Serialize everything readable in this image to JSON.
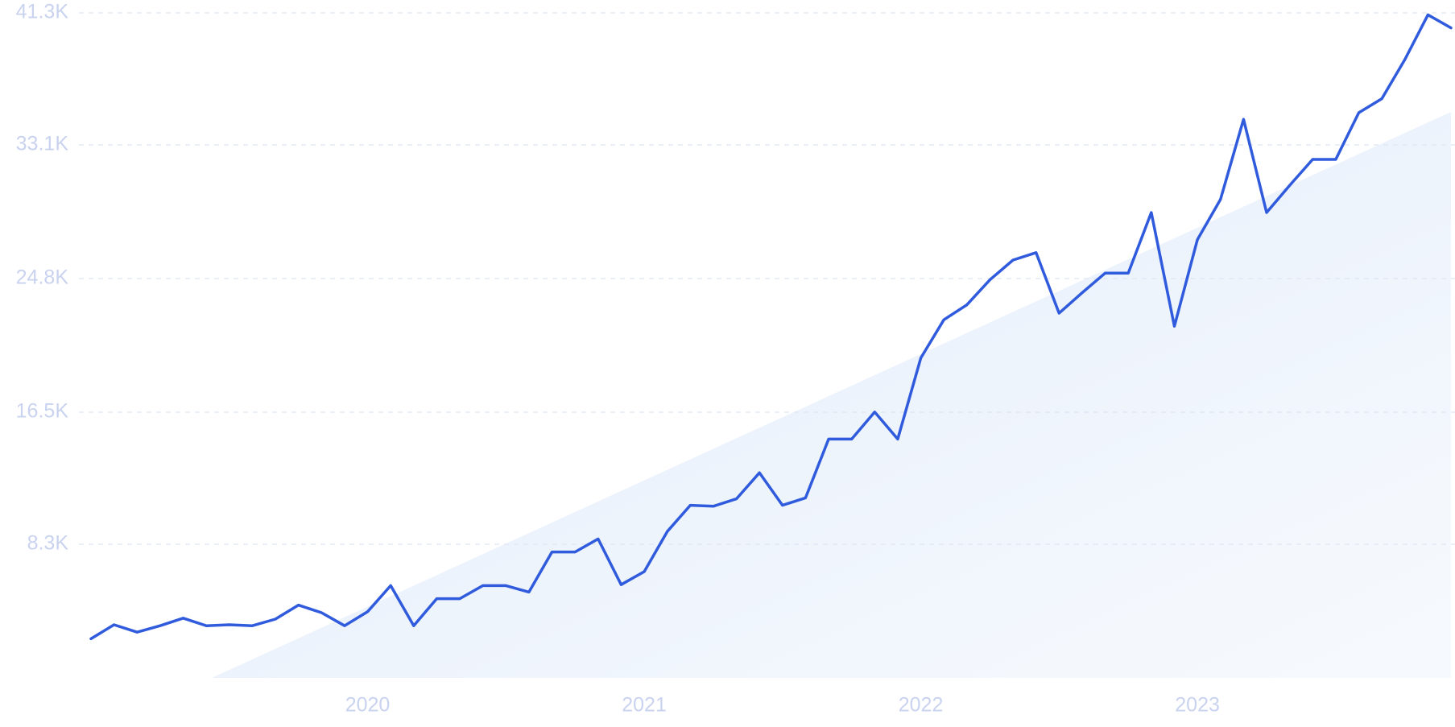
{
  "chart_data": {
    "type": "line",
    "categories": [
      null,
      null,
      null,
      null,
      null,
      null,
      null,
      null,
      null,
      null,
      null,
      null,
      "2020",
      null,
      null,
      null,
      null,
      null,
      null,
      null,
      null,
      null,
      null,
      null,
      "2021",
      null,
      null,
      null,
      null,
      null,
      null,
      null,
      null,
      null,
      null,
      null,
      "2022",
      null,
      null,
      null,
      null,
      null,
      null,
      null,
      null,
      null,
      null,
      null,
      "2023",
      null,
      null,
      null,
      null,
      null,
      null,
      null,
      null,
      null,
      null,
      null
    ],
    "values": [
      2430,
      3300,
      2840,
      3240,
      3710,
      3240,
      3300,
      3240,
      3650,
      4520,
      4050,
      3240,
      4110,
      5730,
      3240,
      4920,
      4920,
      5730,
      5730,
      5330,
      7820,
      7820,
      8630,
      5790,
      6600,
      9090,
      10720,
      10660,
      11120,
      12740,
      10720,
      11180,
      14830,
      14830,
      16510,
      14830,
      19870,
      22240,
      23170,
      24730,
      25950,
      26410,
      22650,
      23920,
      25140,
      25140,
      28900,
      21840,
      27220,
      29710,
      34690,
      28900,
      30580,
      32200,
      32200,
      35100,
      35970,
      38400,
      41180,
      40370
    ],
    "color": "#2f5bdc",
    "ylim": [
      0,
      41300
    ],
    "yticks": [
      {
        "value": 8300,
        "label": "8.3K"
      },
      {
        "value": 16500,
        "label": "16.5K"
      },
      {
        "value": 24800,
        "label": "24.8K"
      },
      {
        "value": 33100,
        "label": "33.1K"
      },
      {
        "value": 41300,
        "label": "41.3K"
      }
    ],
    "grid": true
  }
}
